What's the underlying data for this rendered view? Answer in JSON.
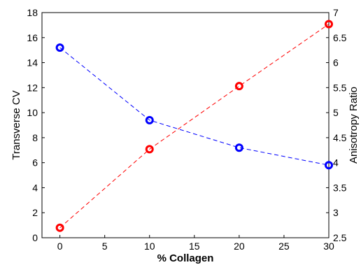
{
  "chart_data": {
    "type": "line",
    "title": "",
    "xlabel": "% Collagen",
    "ylabel_left": "Transverse CV",
    "ylabel_right": "Anisotropy Ratio",
    "xlim": [
      -2,
      30
    ],
    "ylim_left": [
      0,
      18
    ],
    "ylim_right": [
      2.5,
      7
    ],
    "xticks": [
      "0",
      "5",
      "10",
      "15",
      "20",
      "25",
      "30"
    ],
    "yticks_left": [
      "0",
      "2",
      "4",
      "6",
      "8",
      "10",
      "12",
      "14",
      "16",
      "18"
    ],
    "yticks_right": [
      "2.5",
      "3",
      "3.5",
      "4",
      "4.5",
      "5",
      "5.5",
      "6",
      "6.5",
      "7"
    ],
    "grid": false,
    "legend": "none",
    "x": [
      0,
      10,
      20,
      30
    ],
    "series": [
      {
        "axis": "left",
        "color": "#0000ff",
        "line_style": "dashed",
        "marker": "circle",
        "values": [
          15.2,
          9.4,
          7.2,
          5.8
        ]
      },
      {
        "axis": "right",
        "color": "#ff0000",
        "line_style": "dashed",
        "marker": "circle",
        "values": [
          2.7,
          4.27,
          5.53,
          6.77
        ]
      }
    ]
  }
}
